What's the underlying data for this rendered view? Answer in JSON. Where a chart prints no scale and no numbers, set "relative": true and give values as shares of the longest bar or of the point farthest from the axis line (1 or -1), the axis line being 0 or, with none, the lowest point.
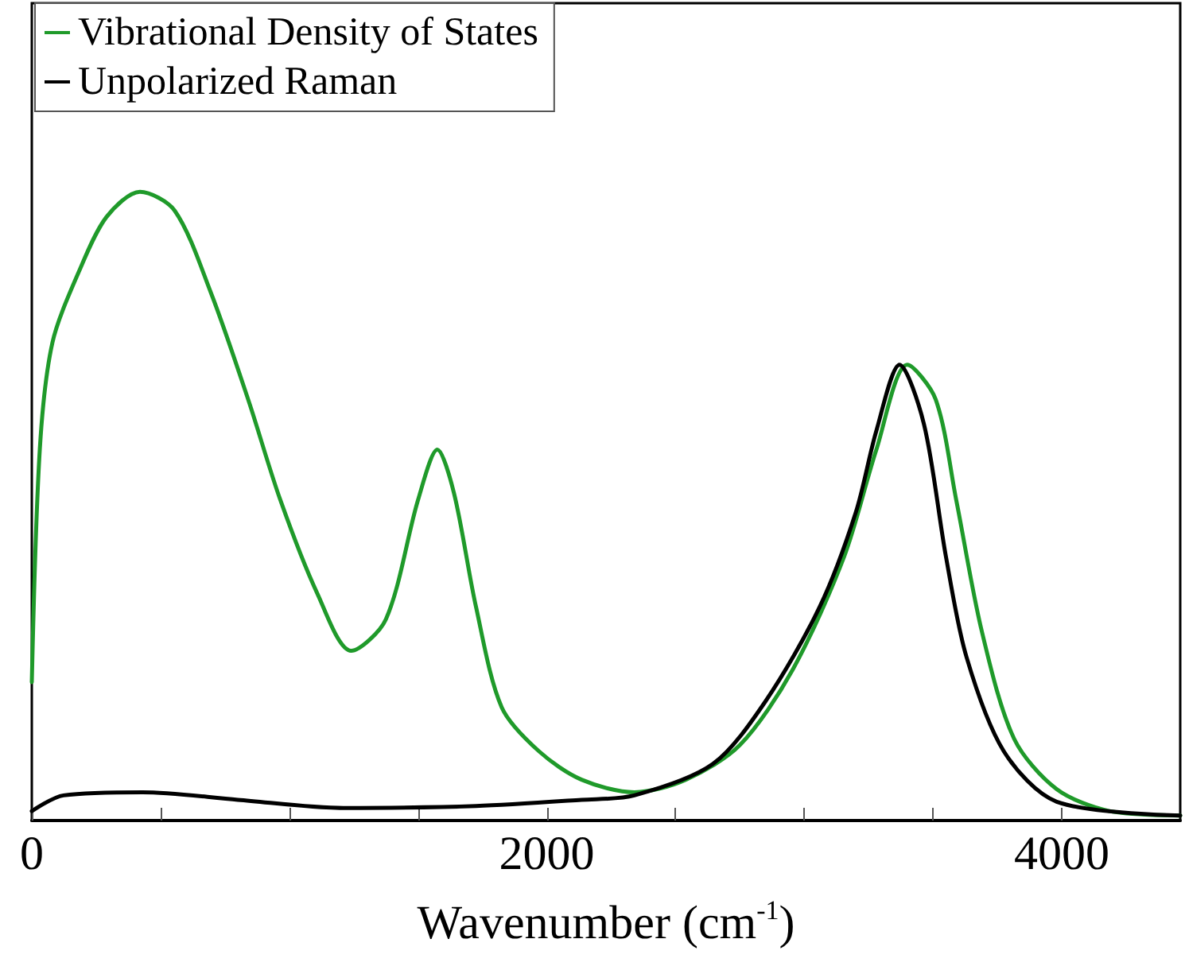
{
  "chart_data": {
    "type": "line",
    "relative": true,
    "xlabel": "Wavenumber (cm$^{-1}$)",
    "xlim": [
      0,
      4460
    ],
    "xticks": [
      0,
      {
        "value": 500,
        "label": null
      },
      {
        "value": 1000,
        "label": null
      },
      {
        "value": 1500,
        "label": null
      },
      2000,
      {
        "value": 2500,
        "label": null
      },
      {
        "value": 3000,
        "label": null
      },
      {
        "value": 3500,
        "label": null
      },
      4000
    ],
    "tick_labels": "x",
    "legend": "top left",
    "grid": false,
    "marker": "none",
    "line_style": "solid",
    "series": [
      {
        "name": "Vibrational Density of States",
        "color": "#1f9a2a",
        "x": [
          0,
          31,
          80,
          185,
          290,
          420,
          555,
          695,
          840,
          965,
          1110,
          1240,
          1375,
          1500,
          1575,
          1640,
          1725,
          1825,
          1970,
          2135,
          2340,
          2540,
          2750,
          2955,
          3155,
          3280,
          3400,
          3510,
          3590,
          3690,
          3815,
          3980,
          4185,
          4460
        ],
        "values": [
          0.22,
          0.59,
          0.76,
          0.875,
          0.96,
          1,
          0.97,
          0.84,
          0.67,
          0.51,
          0.36,
          0.27,
          0.32,
          0.51,
          0.59,
          0.52,
          0.34,
          0.18,
          0.11,
          0.065,
          0.045,
          0.065,
          0.12,
          0.24,
          0.42,
          0.59,
          0.725,
          0.67,
          0.51,
          0.3,
          0.13,
          0.05,
          0.015,
          0.008
        ]
      },
      {
        "name": "Unpolarized Raman",
        "color": "#000000",
        "x": [
          0,
          123,
          430,
          800,
          1210,
          1725,
          2135,
          2340,
          2645,
          2850,
          3060,
          3200,
          3280,
          3370,
          3465,
          3550,
          3630,
          3775,
          3980,
          4460
        ],
        "values": [
          0.015,
          0.04,
          0.045,
          0.033,
          0.02,
          0.023,
          0.033,
          0.04,
          0.09,
          0.19,
          0.34,
          0.49,
          0.62,
          0.725,
          0.63,
          0.42,
          0.26,
          0.11,
          0.03,
          0.008
        ]
      }
    ]
  }
}
